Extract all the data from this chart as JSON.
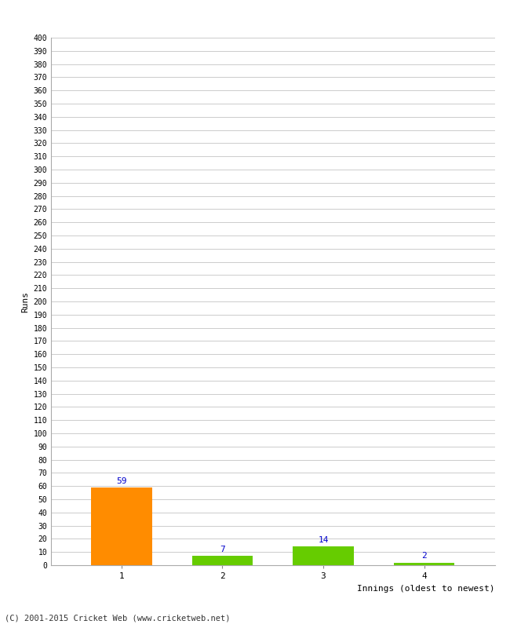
{
  "categories": [
    "1",
    "2",
    "3",
    "4"
  ],
  "values": [
    59,
    7,
    14,
    2
  ],
  "bar_colors": [
    "#ff8c00",
    "#66cc00",
    "#66cc00",
    "#66cc00"
  ],
  "ylabel": "Runs",
  "xlabel": "Innings (oldest to newest)",
  "ylim": [
    0,
    400
  ],
  "ytick_step": 10,
  "background_color": "#ffffff",
  "plot_bg_color": "#ffffff",
  "grid_color": "#cccccc",
  "label_color": "#0000cc",
  "footer": "(C) 2001-2015 Cricket Web (www.cricketweb.net)",
  "bar_width": 0.6,
  "figwidth": 6.5,
  "figheight": 8.0,
  "dpi": 100
}
